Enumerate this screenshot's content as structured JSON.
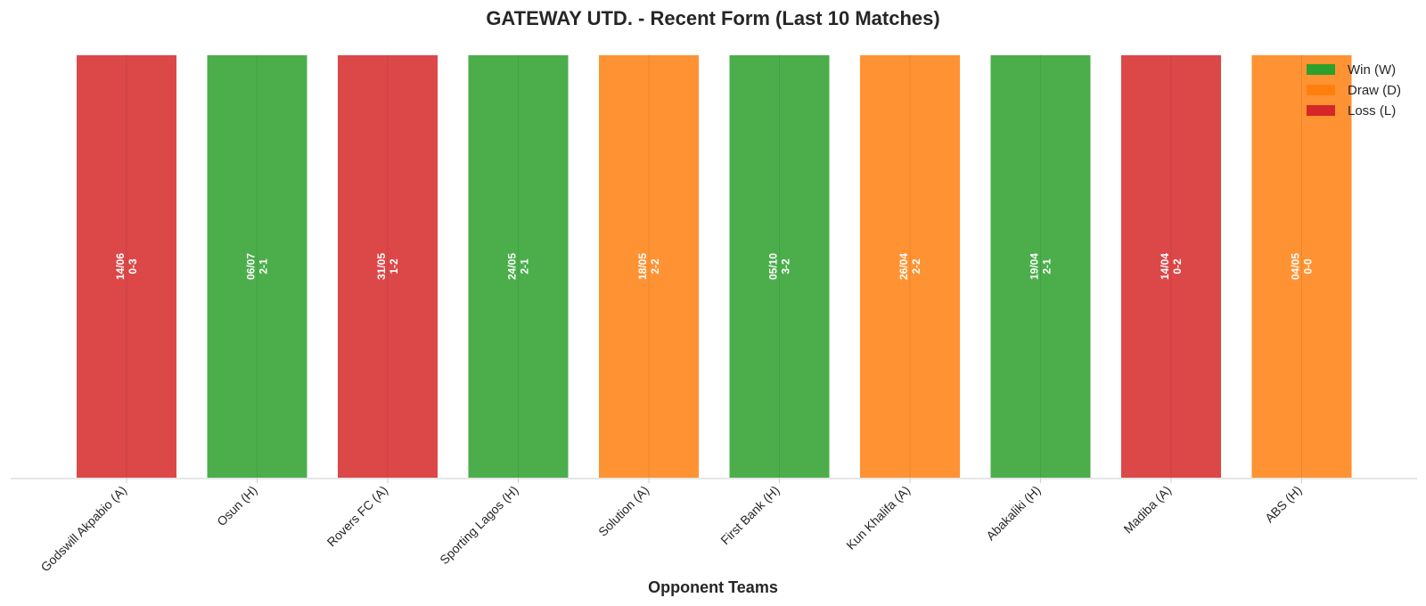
{
  "chart_data": {
    "type": "bar",
    "title": "GATEWAY UTD. - Recent Form (Last 10 Matches)",
    "xlabel": "Opponent Teams",
    "ylabel": "",
    "categories": [
      "Godswill Akpabio (A)",
      "Osun (H)",
      "Rovers FC (A)",
      "Sporting Lagos (H)",
      "Solution (A)",
      "First Bank (H)",
      "Kun Khalifa (A)",
      "Abakaliki (H)",
      "Madiba (A)",
      "ABS (H)"
    ],
    "results": [
      "L",
      "W",
      "L",
      "W",
      "D",
      "W",
      "D",
      "W",
      "L",
      "D"
    ],
    "dates": [
      "14/06",
      "06/07",
      "31/05",
      "24/05",
      "18/05",
      "05/10",
      "26/04",
      "19/04",
      "14/04",
      "04/05"
    ],
    "scores": [
      "0-3",
      "2-1",
      "1-2",
      "2-1",
      "2-2",
      "3-2",
      "2-2",
      "2-1",
      "0-2",
      "0-0"
    ],
    "values": [
      1,
      1,
      1,
      1,
      1,
      1,
      1,
      1,
      1,
      1
    ],
    "ylim": [
      0,
      1
    ],
    "grid": false,
    "legend_position": "top-right",
    "legend": [
      {
        "key": "W",
        "label": "Win (W)",
        "color": "#2ca02c"
      },
      {
        "key": "D",
        "label": "Draw (D)",
        "color": "#ff7f0e"
      },
      {
        "key": "L",
        "label": "Loss (L)",
        "color": "#d62728"
      }
    ],
    "colors": {
      "W": "#2ca02c",
      "D": "#ff7f0e",
      "L": "#d62728"
    }
  }
}
